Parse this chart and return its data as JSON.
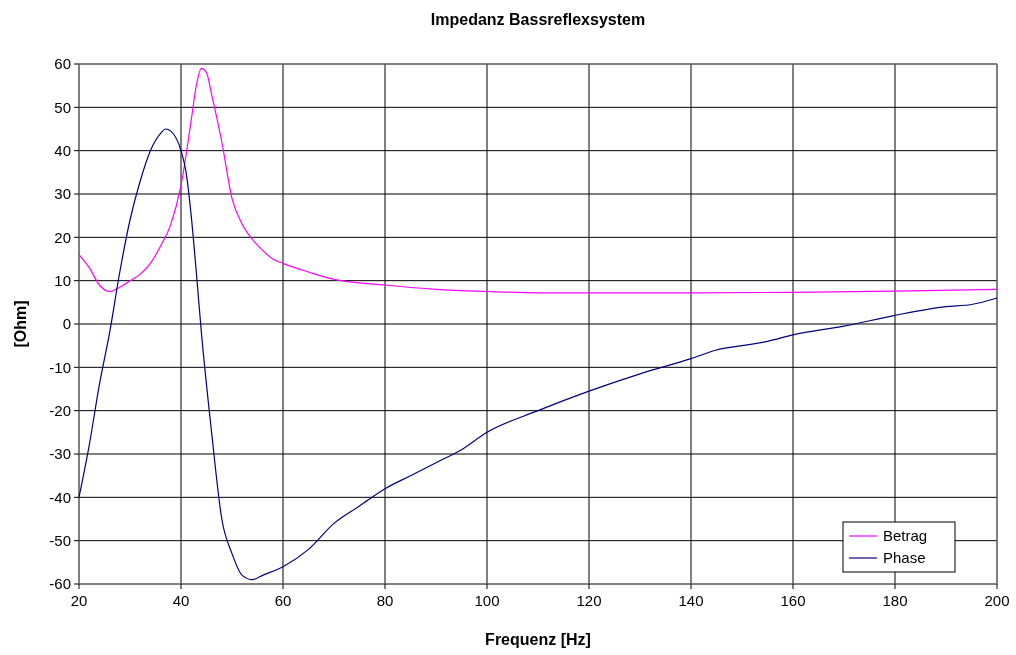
{
  "chart_data": {
    "type": "line",
    "title": "Impedanz Bassreflexsystem",
    "xlabel": "Frequenz [Hz]",
    "ylabel": "[Ohm]",
    "xlim": [
      20,
      200
    ],
    "xticks": [
      20,
      40,
      60,
      80,
      100,
      120,
      140,
      160,
      180,
      200
    ],
    "ylim": [
      -60,
      60
    ],
    "yticks": [
      -60,
      -50,
      -40,
      -30,
      -20,
      -10,
      0,
      10,
      20,
      30,
      40,
      50,
      60
    ],
    "grid": true,
    "legend": "bottom right",
    "line_style": "solid",
    "series": [
      {
        "name": "Betrag",
        "color": "#ff00ff",
        "x": [
          20,
          22,
          24,
          26,
          28,
          30,
          32,
          34,
          36,
          38,
          40,
          42,
          43,
          44,
          45,
          46,
          48,
          50,
          52,
          54,
          56,
          58,
          60,
          65,
          70,
          80,
          90,
          100,
          110,
          120,
          140,
          160,
          180,
          200
        ],
        "values": [
          16,
          13,
          9,
          7.5,
          8.5,
          10,
          11.5,
          14,
          18,
          23,
          32,
          47,
          55,
          59,
          58,
          53,
          42,
          29,
          23,
          19.5,
          17,
          15,
          14,
          12,
          10.3,
          9,
          8,
          7.5,
          7.2,
          7.2,
          7.2,
          7.3,
          7.6,
          8
        ]
      },
      {
        "name": "Phase",
        "color": "#000080",
        "x": [
          20,
          22,
          24,
          26,
          28,
          30,
          32,
          34,
          36,
          37,
          38,
          40,
          41,
          42,
          43,
          44,
          46,
          48,
          50,
          52,
          54,
          56,
          60,
          65,
          70,
          75,
          80,
          85,
          90,
          95,
          100,
          110,
          120,
          130,
          140,
          145,
          150,
          155,
          160,
          170,
          180,
          190,
          195,
          200
        ],
        "values": [
          -40,
          -28,
          -14,
          -2,
          12,
          24,
          33,
          40,
          44,
          45,
          44.5,
          40,
          35,
          25,
          12,
          -2,
          -25,
          -45,
          -53,
          -58,
          -59,
          -58,
          -56,
          -52,
          -46,
          -42,
          -38,
          -35,
          -32,
          -29,
          -25,
          -20,
          -15.5,
          -11.5,
          -8,
          -6,
          -5,
          -4,
          -2.5,
          -0.5,
          2,
          4,
          4.5,
          6
        ]
      }
    ]
  }
}
